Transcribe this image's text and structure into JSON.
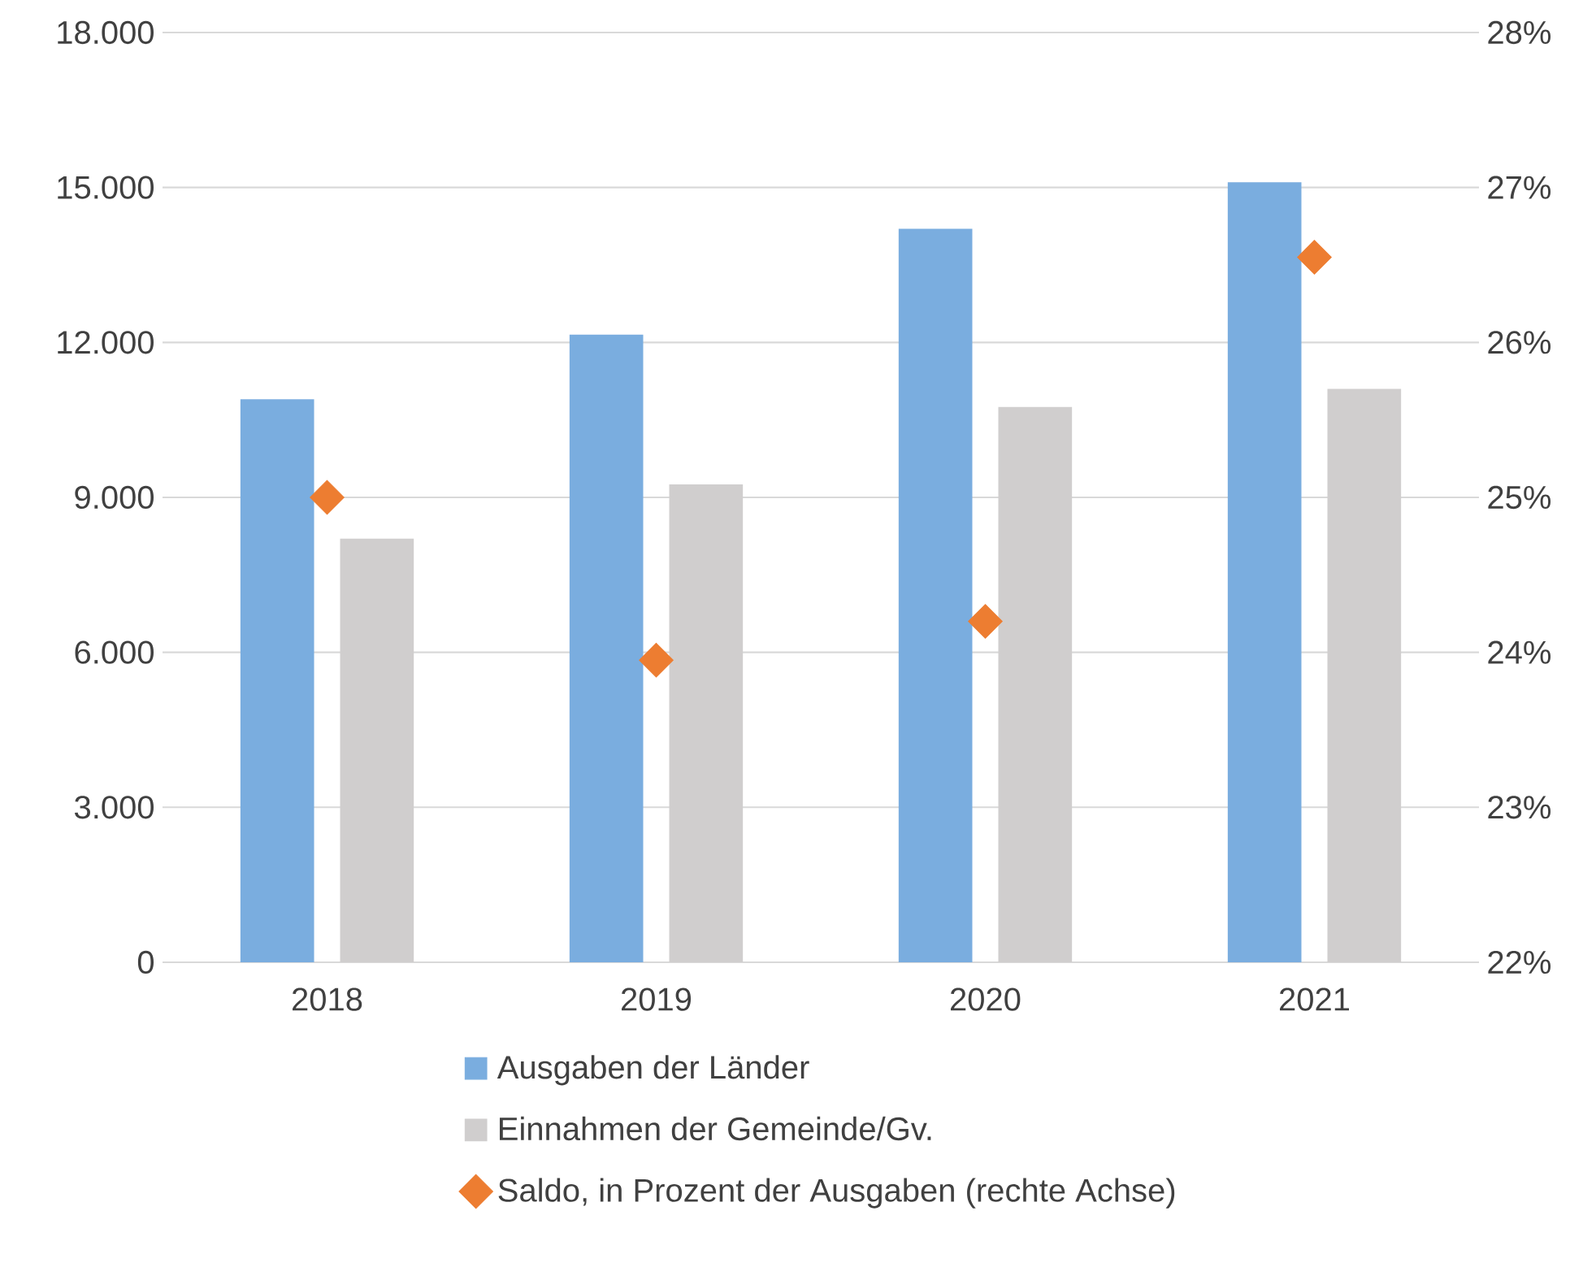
{
  "chart_data": {
    "type": "bar",
    "categories": [
      "2018",
      "2019",
      "2020",
      "2021"
    ],
    "series": [
      {
        "name": "Ausgaben der Länder",
        "color": "#7aaddf",
        "values": [
          10900,
          12150,
          14200,
          15100
        ]
      },
      {
        "name": "Einnahmen der Gemeinde/Gv.",
        "color": "#d0cece",
        "values": [
          8200,
          9250,
          10750,
          11100
        ]
      },
      {
        "name": "Saldo, in Prozent der Ausgaben (rechte Achse)",
        "type": "scatter",
        "axis": "y2",
        "marker": "diamond",
        "color": "#ed7d31",
        "values": [
          25.0,
          23.95,
          24.2,
          26.55
        ]
      }
    ],
    "ylim": [
      0,
      18000
    ],
    "yticks": [
      {
        "value": 0,
        "label": "0"
      },
      {
        "value": 3000,
        "label": "3.000"
      },
      {
        "value": 6000,
        "label": "6.000"
      },
      {
        "value": 9000,
        "label": "9.000"
      },
      {
        "value": 12000,
        "label": "12.000"
      },
      {
        "value": 15000,
        "label": "15.000"
      },
      {
        "value": 18000,
        "label": "18.000"
      }
    ],
    "y2lim": [
      22,
      28
    ],
    "y2ticks": [
      {
        "value": 22,
        "label": "22%"
      },
      {
        "value": 23,
        "label": "23%"
      },
      {
        "value": 24,
        "label": "24%"
      },
      {
        "value": 25,
        "label": "25%"
      },
      {
        "value": 26,
        "label": "26%"
      },
      {
        "value": 27,
        "label": "27%"
      },
      {
        "value": 28,
        "label": "28%"
      }
    ],
    "grid": "y",
    "legend": "bottom"
  }
}
